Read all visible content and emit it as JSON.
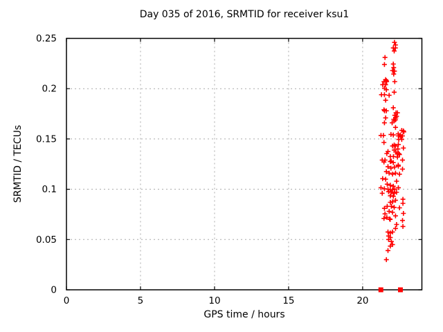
{
  "chart_data": {
    "type": "scatter",
    "title": "Day 035 of 2016, SRMTID for receiver ksu1",
    "xlabel": "GPS time / hours",
    "ylabel": "SRMTID / TECUs",
    "xlim": [
      0,
      24
    ],
    "ylim": [
      0,
      0.25
    ],
    "xticks": {
      "values": [
        0,
        5,
        10,
        15,
        20
      ],
      "labels": [
        "0",
        "5",
        "10",
        "15",
        "20"
      ]
    },
    "yticks": {
      "values": [
        0,
        0.05,
        0.1,
        0.15,
        0.2,
        0.25
      ],
      "labels": [
        "0",
        "0.05",
        "0.1",
        "0.15",
        "0.2",
        "0.25"
      ]
    },
    "grid": true,
    "legend": "none",
    "background_color": "#ffffff",
    "border_color": "#000000",
    "grid_color": "#a8a8a8",
    "marker_color": "#ff0000",
    "series": [
      {
        "name": "SRMTID values",
        "marker": "plus",
        "color": "#ff0000",
        "points": [
          [
            22.15,
            0.246
          ],
          [
            22.22,
            0.2435
          ],
          [
            22.07,
            0.2405
          ],
          [
            22.21,
            0.2405
          ],
          [
            22.13,
            0.2375
          ],
          [
            21.51,
            0.231
          ],
          [
            21.47,
            0.224
          ],
          [
            22.07,
            0.2245
          ],
          [
            22.1,
            0.221
          ],
          [
            22.02,
            0.218
          ],
          [
            22.15,
            0.2175
          ],
          [
            22.1,
            0.2145
          ],
          [
            21.55,
            0.209
          ],
          [
            21.44,
            0.207
          ],
          [
            21.6,
            0.208
          ],
          [
            21.62,
            0.207
          ],
          [
            22.17,
            0.207
          ],
          [
            21.35,
            0.204
          ],
          [
            21.55,
            0.204
          ],
          [
            21.47,
            0.2005
          ],
          [
            21.6,
            0.199
          ],
          [
            22.13,
            0.1965
          ],
          [
            21.27,
            0.194
          ],
          [
            21.47,
            0.194
          ],
          [
            21.79,
            0.1935
          ],
          [
            21.55,
            0.1885
          ],
          [
            22.07,
            0.181
          ],
          [
            21.44,
            0.179
          ],
          [
            21.48,
            0.178
          ],
          [
            21.6,
            0.178
          ],
          [
            22.25,
            0.176
          ],
          [
            22.17,
            0.1735
          ],
          [
            22.29,
            0.1725
          ],
          [
            21.55,
            0.171
          ],
          [
            22.1,
            0.1695
          ],
          [
            22.22,
            0.169
          ],
          [
            21.47,
            0.166
          ],
          [
            21.99,
            0.166
          ],
          [
            22.22,
            0.1615
          ],
          [
            22.64,
            0.1585
          ],
          [
            22.75,
            0.158
          ],
          [
            21.24,
            0.1535
          ],
          [
            21.4,
            0.1535
          ],
          [
            21.91,
            0.1545
          ],
          [
            22.07,
            0.154
          ],
          [
            22.41,
            0.153
          ],
          [
            22.57,
            0.152
          ],
          [
            22.69,
            0.153
          ],
          [
            22.44,
            0.1495
          ],
          [
            22.64,
            0.1495
          ],
          [
            21.44,
            0.1465
          ],
          [
            22.02,
            0.143
          ],
          [
            22.22,
            0.143
          ],
          [
            22.41,
            0.1445
          ],
          [
            22.75,
            0.141
          ],
          [
            22.38,
            0.14
          ],
          [
            22.13,
            0.139
          ],
          [
            21.71,
            0.1375
          ],
          [
            22.35,
            0.176
          ],
          [
            22.24,
            0.171
          ],
          [
            22.13,
            0.168
          ],
          [
            22.78,
            0.157
          ],
          [
            22.4,
            0.155
          ],
          [
            22.55,
            0.154
          ],
          [
            22.13,
            0.144
          ],
          [
            22.24,
            0.137
          ],
          [
            22.44,
            0.1355
          ],
          [
            22.08,
            0.1325
          ],
          [
            22.35,
            0.132
          ],
          [
            21.93,
            0.128
          ],
          [
            22.4,
            0.124
          ],
          [
            22.16,
            0.122
          ],
          [
            21.63,
            0.1355
          ],
          [
            22.33,
            0.135
          ],
          [
            22.49,
            0.1345
          ],
          [
            21.87,
            0.1325
          ],
          [
            21.32,
            0.129
          ],
          [
            21.51,
            0.129
          ],
          [
            21.44,
            0.127
          ],
          [
            21.87,
            0.1275
          ],
          [
            22.07,
            0.1265
          ],
          [
            22.69,
            0.129
          ],
          [
            22.41,
            0.123
          ],
          [
            21.71,
            0.1225
          ],
          [
            21.91,
            0.121
          ],
          [
            22.69,
            0.12
          ],
          [
            21.6,
            0.1175
          ],
          [
            21.79,
            0.116
          ],
          [
            22.02,
            0.115
          ],
          [
            22.22,
            0.116
          ],
          [
            22.49,
            0.115
          ],
          [
            21.35,
            0.1105
          ],
          [
            21.55,
            0.11
          ],
          [
            22.29,
            0.108
          ],
          [
            21.66,
            0.105
          ],
          [
            21.87,
            0.104
          ],
          [
            22.07,
            0.103
          ],
          [
            21.24,
            0.1015
          ],
          [
            21.47,
            0.1005
          ],
          [
            21.71,
            0.1
          ],
          [
            21.87,
            0.0995
          ],
          [
            22.02,
            0.0995
          ],
          [
            22.17,
            0.1
          ],
          [
            22.41,
            0.1015
          ],
          [
            21.75,
            0.0975
          ],
          [
            21.94,
            0.097
          ],
          [
            22.13,
            0.096
          ],
          [
            22.29,
            0.097
          ],
          [
            21.32,
            0.096
          ],
          [
            21.87,
            0.0935
          ],
          [
            22.07,
            0.093
          ],
          [
            22.72,
            0.09
          ],
          [
            22.22,
            0.089
          ],
          [
            22.02,
            0.0875
          ],
          [
            21.87,
            0.087
          ],
          [
            22.72,
            0.086
          ],
          [
            21.66,
            0.083
          ],
          [
            21.94,
            0.083
          ],
          [
            22.13,
            0.082
          ],
          [
            21.47,
            0.081
          ],
          [
            22.49,
            0.0815
          ],
          [
            21.79,
            0.078
          ],
          [
            22.02,
            0.077
          ],
          [
            21.51,
            0.0755
          ],
          [
            22.75,
            0.076
          ],
          [
            22.22,
            0.0735
          ],
          [
            21.63,
            0.072
          ],
          [
            21.44,
            0.071
          ],
          [
            21.82,
            0.0705
          ],
          [
            21.86,
            0.07
          ],
          [
            22.69,
            0.069
          ],
          [
            22.29,
            0.065
          ],
          [
            22.72,
            0.063
          ],
          [
            22.22,
            0.061
          ],
          [
            21.71,
            0.0575
          ],
          [
            21.87,
            0.0565
          ],
          [
            22.02,
            0.0575
          ],
          [
            21.75,
            0.0535
          ],
          [
            21.87,
            0.052
          ],
          [
            21.75,
            0.05
          ],
          [
            21.94,
            0.048
          ],
          [
            22.02,
            0.045
          ],
          [
            21.87,
            0.0435
          ],
          [
            21.71,
            0.039
          ],
          [
            21.6,
            0.03
          ]
        ]
      },
      {
        "name": "baseline markers",
        "marker": "filled-square",
        "color": "#ff0000",
        "points": [
          [
            21.23,
            0
          ],
          [
            22.55,
            0
          ]
        ]
      }
    ]
  }
}
